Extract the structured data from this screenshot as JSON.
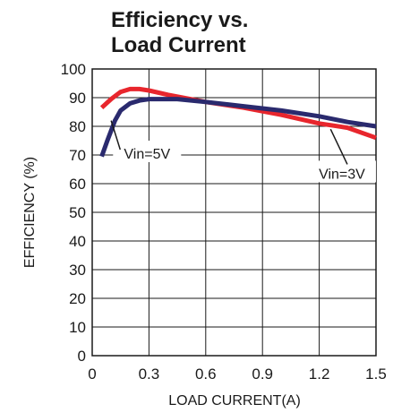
{
  "chart_data": {
    "type": "line",
    "title_lines": [
      "Efficiency vs.",
      "Load Current"
    ],
    "xlabel": "LOAD CURRENT(A)",
    "ylabel": "EFFICIENCY (%)",
    "xlim": [
      0,
      1.5
    ],
    "ylim": [
      0,
      100
    ],
    "x_ticks": [
      "0",
      "0.3",
      "0.6",
      "0.9",
      "1.2",
      "1.5"
    ],
    "y_ticks": [
      "0",
      "10",
      "20",
      "30",
      "40",
      "50",
      "60",
      "70",
      "80",
      "90",
      "100"
    ],
    "grid": true,
    "series": [
      {
        "name": "Vin=3V",
        "color": "#e8262d",
        "points": [
          [
            0.05,
            86.5
          ],
          [
            0.1,
            89.5
          ],
          [
            0.15,
            92
          ],
          [
            0.2,
            93
          ],
          [
            0.25,
            93
          ],
          [
            0.3,
            92.5
          ],
          [
            0.4,
            91
          ],
          [
            0.6,
            88.5
          ],
          [
            0.8,
            86.5
          ],
          [
            1.0,
            84
          ],
          [
            1.2,
            81
          ],
          [
            1.35,
            79.5
          ],
          [
            1.5,
            76
          ]
        ]
      },
      {
        "name": "Vin=5V",
        "color": "#2a2a6e",
        "points": [
          [
            0.05,
            69.5
          ],
          [
            0.08,
            75
          ],
          [
            0.12,
            82
          ],
          [
            0.15,
            85.5
          ],
          [
            0.2,
            88
          ],
          [
            0.25,
            89
          ],
          [
            0.3,
            89.5
          ],
          [
            0.45,
            89.5
          ],
          [
            0.6,
            88.5
          ],
          [
            0.8,
            87
          ],
          [
            1.0,
            85.5
          ],
          [
            1.2,
            83.5
          ],
          [
            1.35,
            81.5
          ],
          [
            1.5,
            80
          ]
        ]
      }
    ],
    "annotations": [
      {
        "text": "Vin=5V",
        "series": "Vin=5V",
        "x": 0.29,
        "y": 70,
        "points_to": [
          0.1,
          82
        ]
      },
      {
        "text": "Vin=3V",
        "series": "Vin=3V",
        "x": 1.32,
        "y": 63,
        "points_to": [
          1.26,
          79
        ]
      }
    ]
  }
}
